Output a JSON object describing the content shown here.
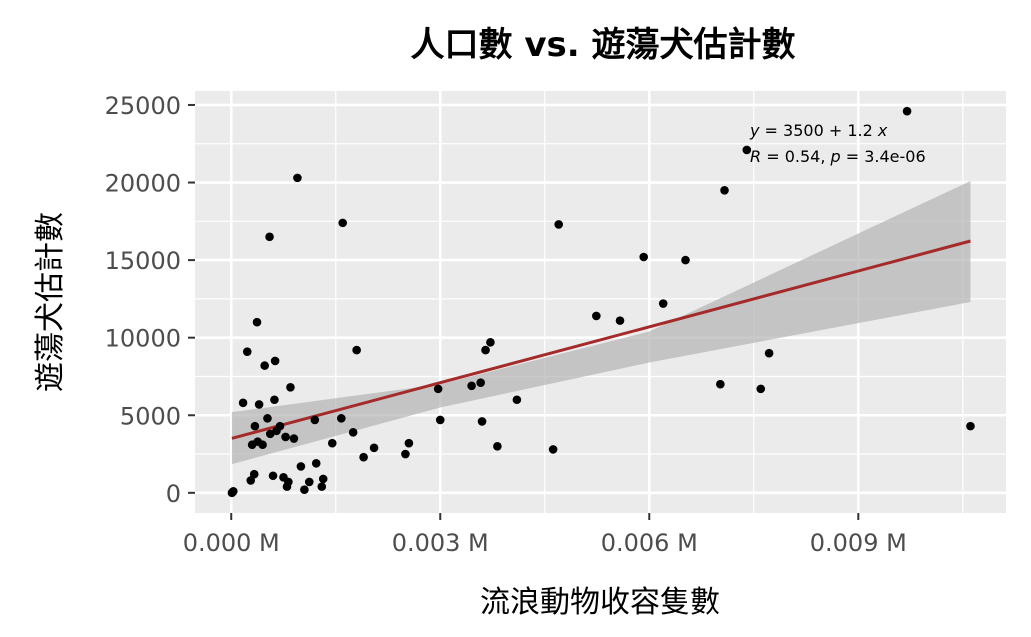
{
  "chart_data": {
    "type": "scatter",
    "title": "人口數 vs. 遊蕩犬估計數",
    "xlabel": "流浪動物收容隻數",
    "ylabel": "遊蕩犬估計數",
    "xlim": [
      -0.00052,
      0.01112
    ],
    "ylim": [
      -1300,
      25900
    ],
    "x_ticks": [
      0,
      0.003,
      0.006,
      0.009
    ],
    "x_tick_labels": [
      "0.000 M",
      "0.003 M",
      "0.006 M",
      "0.009 M"
    ],
    "y_ticks": [
      0,
      5000,
      10000,
      15000,
      20000,
      25000
    ],
    "y_tick_labels": [
      "0",
      "5000",
      "10000",
      "15000",
      "20000",
      "25000"
    ],
    "grid": true,
    "background": "#ebebeb",
    "point_color": "#000000",
    "line_color": "#a52a2a",
    "band_color": "#b3b3b3",
    "regression": {
      "intercept": 3500,
      "slope": 1200000,
      "x_range": [
        1e-05,
        0.01061
      ],
      "band_upper": [
        [
          1e-05,
          5200
        ],
        [
          0.003,
          7000
        ],
        [
          0.006,
          10400
        ],
        [
          0.01061,
          20100
        ]
      ],
      "band_lower": [
        [
          1e-05,
          1850
        ],
        [
          0.003,
          5500
        ],
        [
          0.006,
          8400
        ],
        [
          0.01061,
          12300
        ]
      ]
    },
    "annotation": {
      "line1": [
        "y",
        " = 3500 + 1.2 ",
        "x"
      ],
      "line2": [
        "R",
        " = 0.54, ",
        "p",
        " = 3.4e-06"
      ]
    },
    "points": [
      [
        1e-05,
        0
      ],
      [
        2e-05,
        50
      ],
      [
        3e-05,
        100
      ],
      [
        0.00017,
        5800
      ],
      [
        0.00023,
        9100
      ],
      [
        0.00028,
        800
      ],
      [
        0.0003,
        3100
      ],
      [
        0.00033,
        1200
      ],
      [
        0.00034,
        4300
      ],
      [
        0.00037,
        11000
      ],
      [
        0.00038,
        3300
      ],
      [
        0.0004,
        5700
      ],
      [
        0.00045,
        3100
      ],
      [
        0.00048,
        8200
      ],
      [
        0.00052,
        4800
      ],
      [
        0.00055,
        16500
      ],
      [
        0.00056,
        3800
      ],
      [
        0.0006,
        1100
      ],
      [
        0.00062,
        6000
      ],
      [
        0.00063,
        8500
      ],
      [
        0.00065,
        4000
      ],
      [
        0.0007,
        4300
      ],
      [
        0.00075,
        1000
      ],
      [
        0.00078,
        3600
      ],
      [
        0.0008,
        400
      ],
      [
        0.00082,
        700
      ],
      [
        0.00085,
        6800
      ],
      [
        0.0009,
        3500
      ],
      [
        0.00095,
        20300
      ],
      [
        0.001,
        1700
      ],
      [
        0.00105,
        200
      ],
      [
        0.00112,
        700
      ],
      [
        0.0012,
        4700
      ],
      [
        0.00122,
        1900
      ],
      [
        0.0013,
        400
      ],
      [
        0.00132,
        900
      ],
      [
        0.00145,
        3200
      ],
      [
        0.00158,
        4800
      ],
      [
        0.0016,
        17400
      ],
      [
        0.00175,
        3900
      ],
      [
        0.0018,
        9200
      ],
      [
        0.0019,
        2300
      ],
      [
        0.00205,
        2900
      ],
      [
        0.0025,
        2500
      ],
      [
        0.00255,
        3200
      ],
      [
        0.00297,
        6700
      ],
      [
        0.003,
        4700
      ],
      [
        0.00345,
        6900
      ],
      [
        0.00358,
        7100
      ],
      [
        0.0036,
        4600
      ],
      [
        0.00365,
        9200
      ],
      [
        0.00372,
        9700
      ],
      [
        0.00382,
        3000
      ],
      [
        0.0041,
        6000
      ],
      [
        0.00462,
        2800
      ],
      [
        0.0047,
        17300
      ],
      [
        0.00524,
        11400
      ],
      [
        0.00558,
        11100
      ],
      [
        0.00592,
        15200
      ],
      [
        0.0062,
        12200
      ],
      [
        0.00652,
        15000
      ],
      [
        0.00702,
        7000
      ],
      [
        0.00708,
        19500
      ],
      [
        0.0074,
        22100
      ],
      [
        0.0076,
        6700
      ],
      [
        0.00772,
        9000
      ],
      [
        0.0097,
        24600
      ],
      [
        0.01061,
        4300
      ]
    ]
  }
}
